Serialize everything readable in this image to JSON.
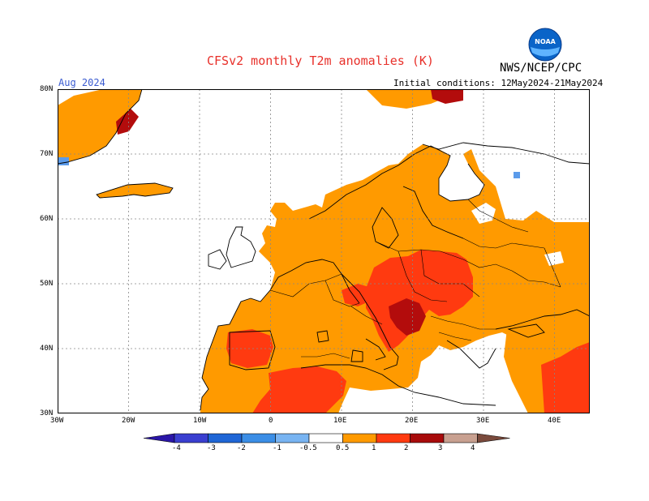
{
  "header": {
    "title": "CFSv2 monthly T2m anomalies (K)",
    "agency": "NWS/NCEP/CPC",
    "logo_text": "NOAA",
    "valid_month": "Aug 2024",
    "initial_conditions": "Initial conditions: 12May2024-21May2024"
  },
  "axes": {
    "lat_labels": [
      "80N",
      "70N",
      "60N",
      "50N",
      "40N",
      "30N"
    ],
    "lon_labels": [
      "30W",
      "20W",
      "10W",
      "0",
      "10E",
      "20E",
      "30E",
      "40E"
    ],
    "lat_range": [
      30,
      80
    ],
    "lon_range": [
      -30,
      45
    ],
    "grid": true
  },
  "colorbar": {
    "labels": [
      "-4",
      "-3",
      "-2",
      "-1",
      "-0.5",
      "0.5",
      "1",
      "2",
      "3",
      "4"
    ],
    "colors": [
      "#2a16a8",
      "#3a3fd0",
      "#1f66d6",
      "#3b8ee6",
      "#78b4f2",
      "#ffffff",
      "#ff9a00",
      "#ff3a10",
      "#a80b0b",
      "#c8a090",
      "#7a4a3c"
    ]
  },
  "anomaly_colors": {
    "low": "#ff9a00",
    "mid": "#ff3a10",
    "high": "#b30c0c",
    "neg": "#5b9bea"
  }
}
